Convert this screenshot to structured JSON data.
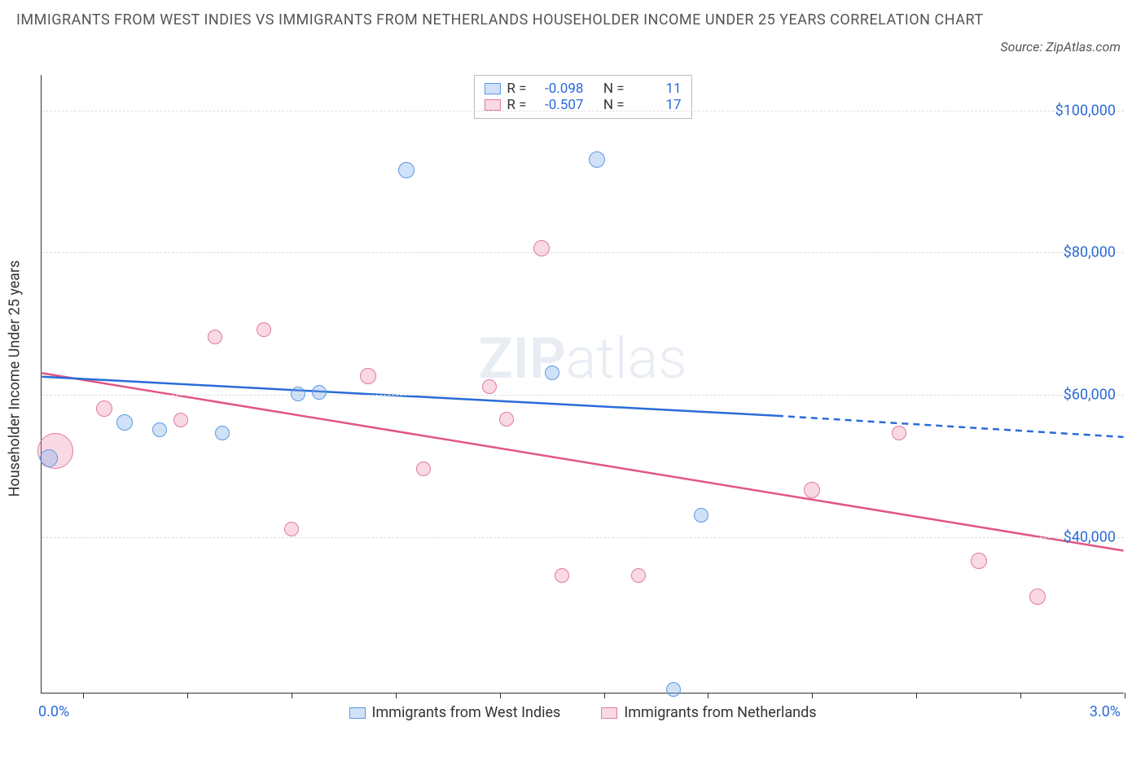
{
  "title": "IMMIGRANTS FROM WEST INDIES VS IMMIGRANTS FROM NETHERLANDS HOUSEHOLDER INCOME UNDER 25 YEARS CORRELATION CHART",
  "source_prefix": "Source: ",
  "source_name": "ZipAtlas.com",
  "ylabel": "Householder Income Under 25 years",
  "watermark_bold": "ZIP",
  "watermark_rest": "atlas",
  "xaxis": {
    "min_label": "0.0%",
    "max_label": "3.0%",
    "xmin": -0.12,
    "xmax": 3.0,
    "ticks": [
      0.0,
      0.3,
      0.6,
      0.9,
      1.2,
      1.5,
      1.8,
      2.1,
      2.4,
      2.7,
      3.0
    ]
  },
  "yaxis": {
    "ymin": 18000,
    "ymax": 105000,
    "ticks": [
      {
        "v": 40000,
        "label": "$40,000"
      },
      {
        "v": 60000,
        "label": "$60,000"
      },
      {
        "v": 80000,
        "label": "$80,000"
      },
      {
        "v": 100000,
        "label": "$100,000"
      }
    ]
  },
  "series": {
    "blue": {
      "name": "Immigrants from West Indies",
      "fill": "rgba(120,170,235,0.35)",
      "stroke": "#5a9ae0",
      "line_stroke": "#2a6bd8",
      "R": "-0.098",
      "N": "11",
      "trend": {
        "x1": -0.12,
        "y1": 62500,
        "x2": 2.0,
        "y2": 57000,
        "x3": 3.0,
        "y3": 54000
      },
      "points": [
        {
          "x": -0.1,
          "y": 51000,
          "r": 11
        },
        {
          "x": 0.12,
          "y": 56000,
          "r": 10
        },
        {
          "x": 0.22,
          "y": 55000,
          "r": 9
        },
        {
          "x": 0.4,
          "y": 54500,
          "r": 9
        },
        {
          "x": 0.62,
          "y": 60000,
          "r": 9
        },
        {
          "x": 0.68,
          "y": 60200,
          "r": 9
        },
        {
          "x": 0.93,
          "y": 91500,
          "r": 10
        },
        {
          "x": 1.35,
          "y": 63000,
          "r": 9
        },
        {
          "x": 1.48,
          "y": 93000,
          "r": 10
        },
        {
          "x": 1.7,
          "y": 18500,
          "r": 9
        },
        {
          "x": 1.78,
          "y": 43000,
          "r": 9
        }
      ]
    },
    "pink": {
      "name": "Immigrants from Netherlands",
      "fill": "rgba(235,130,165,0.30)",
      "stroke": "#e17aa0",
      "line_stroke": "#e25585",
      "R": "-0.507",
      "N": "17",
      "trend": {
        "x1": -0.12,
        "y1": 63000,
        "x2": 3.0,
        "y2": 38000
      },
      "points": [
        {
          "x": -0.08,
          "y": 52000,
          "r": 22
        },
        {
          "x": 0.06,
          "y": 58000,
          "r": 10
        },
        {
          "x": 0.28,
          "y": 56300,
          "r": 9
        },
        {
          "x": 0.38,
          "y": 68000,
          "r": 9
        },
        {
          "x": 0.52,
          "y": 69000,
          "r": 9
        },
        {
          "x": 0.6,
          "y": 41000,
          "r": 9
        },
        {
          "x": 0.82,
          "y": 62500,
          "r": 10
        },
        {
          "x": 0.98,
          "y": 49500,
          "r": 9
        },
        {
          "x": 1.17,
          "y": 61000,
          "r": 9
        },
        {
          "x": 1.22,
          "y": 56500,
          "r": 9
        },
        {
          "x": 1.32,
          "y": 80500,
          "r": 10
        },
        {
          "x": 1.38,
          "y": 34500,
          "r": 9
        },
        {
          "x": 1.6,
          "y": 34500,
          "r": 9
        },
        {
          "x": 2.1,
          "y": 46500,
          "r": 10
        },
        {
          "x": 2.35,
          "y": 54500,
          "r": 9
        },
        {
          "x": 2.58,
          "y": 36500,
          "r": 10
        },
        {
          "x": 2.75,
          "y": 31500,
          "r": 10
        }
      ]
    }
  },
  "legend_top_labels": {
    "R": "R =",
    "N": "N ="
  },
  "colors": {
    "tick_label": "#2a6bd8",
    "grid": "#ddd",
    "axis": "#333"
  }
}
